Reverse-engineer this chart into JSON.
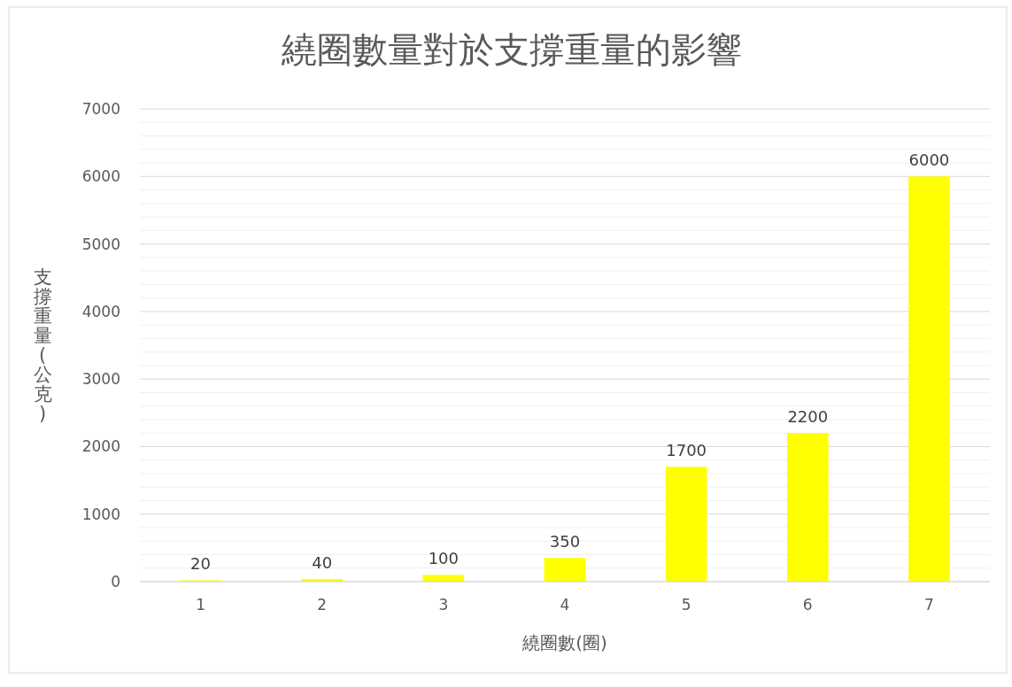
{
  "chart_data": {
    "type": "bar",
    "title": "繞圈數量對於支撐重量的影響",
    "xlabel": "繞圈數(圈)",
    "ylabel": "支撐重量(公克)",
    "categories": [
      "1",
      "2",
      "3",
      "4",
      "5",
      "6",
      "7"
    ],
    "values": [
      20,
      40,
      100,
      350,
      1700,
      2200,
      6000
    ],
    "color": "#ffff00",
    "ylim": [
      0,
      7000
    ],
    "yticks": [
      0,
      {
        "value": 200,
        "label": null
      },
      {
        "value": 400,
        "label": null
      },
      {
        "value": 600,
        "label": null
      },
      {
        "value": 800,
        "label": null
      },
      1000,
      {
        "value": 1200,
        "label": null
      },
      {
        "value": 1400,
        "label": null
      },
      {
        "value": 1600,
        "label": null
      },
      {
        "value": 1800,
        "label": null
      },
      2000,
      {
        "value": 2200,
        "label": null
      },
      {
        "value": 2400,
        "label": null
      },
      {
        "value": 2600,
        "label": null
      },
      {
        "value": 2800,
        "label": null
      },
      3000,
      {
        "value": 3200,
        "label": null
      },
      {
        "value": 3400,
        "label": null
      },
      {
        "value": 3600,
        "label": null
      },
      {
        "value": 3800,
        "label": null
      },
      4000,
      {
        "value": 4200,
        "label": null
      },
      {
        "value": 4400,
        "label": null
      },
      {
        "value": 4600,
        "label": null
      },
      {
        "value": 4800,
        "label": null
      },
      5000,
      {
        "value": 5200,
        "label": null
      },
      {
        "value": 5400,
        "label": null
      },
      {
        "value": 5600,
        "label": null
      },
      {
        "value": 5800,
        "label": null
      },
      6000,
      {
        "value": 6200,
        "label": null
      },
      {
        "value": 6400,
        "label": null
      },
      {
        "value": 6600,
        "label": null
      },
      {
        "value": 6800,
        "label": null
      },
      7000
    ],
    "grid": "y",
    "data_labels": true
  }
}
